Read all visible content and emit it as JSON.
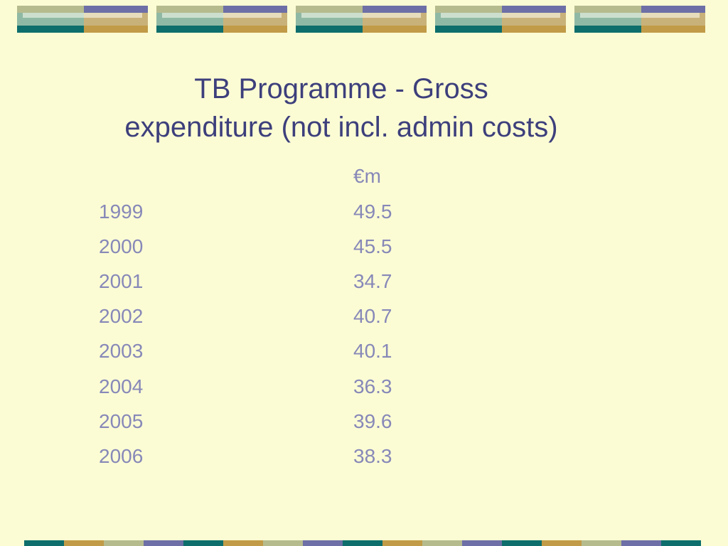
{
  "slide": {
    "title_line1": "TB Programme - Gross",
    "title_line2": "expenditure (not incl. admin costs)"
  },
  "table": {
    "unit_header": "€m",
    "rows": [
      {
        "year": "1999",
        "value": "49.5"
      },
      {
        "year": "2000",
        "value": "45.5"
      },
      {
        "year": "2001",
        "value": "34.7"
      },
      {
        "year": "2002",
        "value": "40.7"
      },
      {
        "year": "2003",
        "value": "40.1"
      },
      {
        "year": "2004",
        "value": "36.3"
      },
      {
        "year": "2005",
        "value": "39.6"
      },
      {
        "year": "2006",
        "value": "38.3"
      }
    ]
  },
  "theme": {
    "background": "#fbfcd4",
    "title_color": "#3d3f7c",
    "text_color": "#8788b8",
    "band_colors": [
      "#0d6e6c",
      "#c19b47",
      "#b6bb8e",
      "#6d6fa6",
      "#8fb9a4",
      "#c9b27a"
    ]
  }
}
